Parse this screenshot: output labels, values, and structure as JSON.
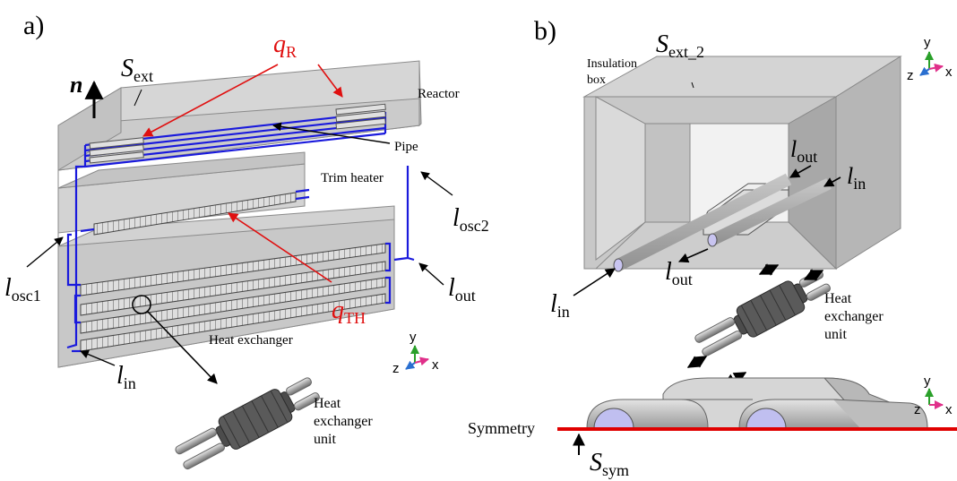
{
  "panel_a": {
    "label": "a)",
    "normal_symbol": "n",
    "s_ext": {
      "base": "S",
      "sub": "ext"
    },
    "q_r": {
      "base": "q",
      "sub": "R"
    },
    "q_th": {
      "base": "q",
      "sub": "TH"
    },
    "reactor": "Reactor",
    "pipe": "Pipe",
    "trim_heater": "Trim heater",
    "heat_exchanger": "Heat exchanger",
    "hx_unit": [
      "Heat",
      "exchanger",
      "unit"
    ],
    "l_osc1": {
      "base": "l",
      "sub": "osc1"
    },
    "l_osc2": {
      "base": "l",
      "sub": "osc2"
    },
    "l_out": {
      "base": "l",
      "sub": "out"
    },
    "l_in": {
      "base": "l",
      "sub": "in"
    },
    "axes": {
      "y": "y",
      "z": "z",
      "x": "x"
    }
  },
  "panel_b": {
    "label": "b)",
    "s_ext_2": {
      "base": "S",
      "sub": "ext_2"
    },
    "insulation_box": [
      "Insulation",
      "box"
    ],
    "l_out_top": {
      "base": "l",
      "sub": "out"
    },
    "l_in_top": {
      "base": "l",
      "sub": "in"
    },
    "l_out_bottom": {
      "base": "l",
      "sub": "out"
    },
    "l_in_bottom": {
      "base": "l",
      "sub": "in"
    },
    "hx_unit": [
      "Heat",
      "exchanger",
      "unit"
    ],
    "symmetry": "Symmetry",
    "s_sym": {
      "base": "S",
      "sub": "sym"
    },
    "axes_top": {
      "y": "y",
      "z": "z",
      "x": "x"
    },
    "axes_bottom": {
      "y": "y",
      "z": "z",
      "x": "x"
    }
  },
  "colors": {
    "pipe_blue": "#1a1adc",
    "annotation_red": "#e01010",
    "box_gray": "#c9c9c9",
    "symmetry_red": "#e00000",
    "axis_green": "#2aa02a",
    "axis_magenta": "#e0308a",
    "axis_blue": "#2a6fd0"
  }
}
